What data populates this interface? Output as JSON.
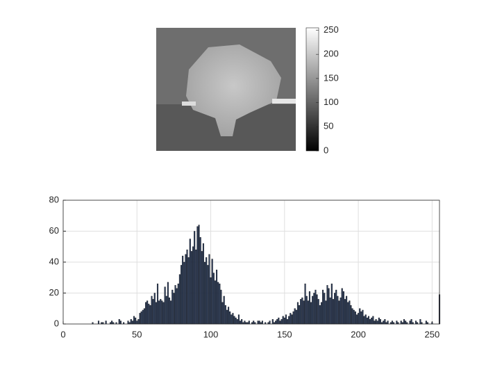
{
  "chart_data": [
    {
      "type": "image",
      "clim": [
        0,
        255
      ],
      "colorbar_ticks": [
        0,
        50,
        100,
        150,
        200,
        250
      ]
    },
    {
      "type": "bar",
      "xlim": [
        0,
        255
      ],
      "xticks": [
        0,
        50,
        100,
        150,
        200,
        250
      ],
      "ylim": [
        0,
        80
      ],
      "yticks": [
        0,
        20,
        40,
        60,
        80
      ],
      "grid": true,
      "color": "#2d3e5e",
      "x": [
        0,
        1,
        2,
        3,
        4,
        5,
        6,
        7,
        8,
        9,
        10,
        11,
        12,
        13,
        14,
        15,
        16,
        17,
        18,
        19,
        20,
        21,
        22,
        23,
        24,
        25,
        26,
        27,
        28,
        29,
        30,
        31,
        32,
        33,
        34,
        35,
        36,
        37,
        38,
        39,
        40,
        41,
        42,
        43,
        44,
        45,
        46,
        47,
        48,
        49,
        50,
        51,
        52,
        53,
        54,
        55,
        56,
        57,
        58,
        59,
        60,
        61,
        62,
        63,
        64,
        65,
        66,
        67,
        68,
        69,
        70,
        71,
        72,
        73,
        74,
        75,
        76,
        77,
        78,
        79,
        80,
        81,
        82,
        83,
        84,
        85,
        86,
        87,
        88,
        89,
        90,
        91,
        92,
        93,
        94,
        95,
        96,
        97,
        98,
        99,
        100,
        101,
        102,
        103,
        104,
        105,
        106,
        107,
        108,
        109,
        110,
        111,
        112,
        113,
        114,
        115,
        116,
        117,
        118,
        119,
        120,
        121,
        122,
        123,
        124,
        125,
        126,
        127,
        128,
        129,
        130,
        131,
        132,
        133,
        134,
        135,
        136,
        137,
        138,
        139,
        140,
        141,
        142,
        143,
        144,
        145,
        146,
        147,
        148,
        149,
        150,
        151,
        152,
        153,
        154,
        155,
        156,
        157,
        158,
        159,
        160,
        161,
        162,
        163,
        164,
        165,
        166,
        167,
        168,
        169,
        170,
        171,
        172,
        173,
        174,
        175,
        176,
        177,
        178,
        179,
        180,
        181,
        182,
        183,
        184,
        185,
        186,
        187,
        188,
        189,
        190,
        191,
        192,
        193,
        194,
        195,
        196,
        197,
        198,
        199,
        200,
        201,
        202,
        203,
        204,
        205,
        206,
        207,
        208,
        209,
        210,
        211,
        212,
        213,
        214,
        215,
        216,
        217,
        218,
        219,
        220,
        221,
        222,
        223,
        224,
        225,
        226,
        227,
        228,
        229,
        230,
        231,
        232,
        233,
        234,
        235,
        236,
        237,
        238,
        239,
        240,
        241,
        242,
        243,
        244,
        245,
        246,
        247,
        248,
        249,
        250,
        251,
        252,
        253,
        254,
        255
      ],
      "values": [
        0,
        0,
        0,
        0,
        0,
        0,
        0,
        0,
        0,
        0,
        0,
        0,
        0,
        0,
        0,
        0,
        0,
        0,
        0,
        0,
        1,
        0,
        0,
        0,
        2,
        0,
        1,
        1,
        0,
        2,
        0,
        0,
        1,
        2,
        1,
        0,
        1,
        0,
        3,
        2,
        0,
        1,
        0,
        0,
        2,
        1,
        3,
        2,
        5,
        4,
        2,
        3,
        7,
        8,
        9,
        10,
        14,
        15,
        13,
        12,
        18,
        16,
        20,
        14,
        26,
        15,
        16,
        15,
        14,
        24,
        18,
        27,
        17,
        15,
        22,
        20,
        25,
        23,
        26,
        32,
        38,
        44,
        40,
        45,
        48,
        43,
        55,
        47,
        50,
        60,
        48,
        63,
        64,
        56,
        47,
        52,
        40,
        43,
        38,
        45,
        30,
        42,
        33,
        28,
        35,
        27,
        26,
        22,
        14,
        18,
        12,
        9,
        11,
        8,
        6,
        7,
        5,
        4,
        3,
        6,
        2,
        3,
        1,
        2,
        1,
        1,
        2,
        0,
        1,
        2,
        1,
        0,
        2,
        2,
        1,
        2,
        0,
        1,
        0,
        1,
        2,
        0,
        3,
        1,
        2,
        3,
        4,
        2,
        3,
        5,
        4,
        6,
        3,
        5,
        7,
        6,
        8,
        10,
        9,
        14,
        12,
        16,
        17,
        15,
        26,
        18,
        15,
        21,
        14,
        18,
        20,
        22,
        19,
        16,
        12,
        14,
        22,
        20,
        15,
        25,
        23,
        17,
        26,
        16,
        20,
        22,
        18,
        15,
        17,
        23,
        21,
        16,
        18,
        14,
        15,
        12,
        10,
        9,
        8,
        6,
        7,
        10,
        8,
        9,
        5,
        6,
        4,
        5,
        3,
        4,
        5,
        2,
        3,
        2,
        4,
        3,
        1,
        2,
        3,
        1,
        2,
        0,
        1,
        2,
        1,
        0,
        2,
        1,
        0,
        2,
        1,
        3,
        2,
        1,
        0,
        2,
        3,
        1,
        0,
        2,
        1,
        0,
        3,
        1,
        0,
        0,
        2,
        1,
        0,
        0,
        1,
        0,
        0,
        0,
        0,
        19
      ]
    }
  ]
}
